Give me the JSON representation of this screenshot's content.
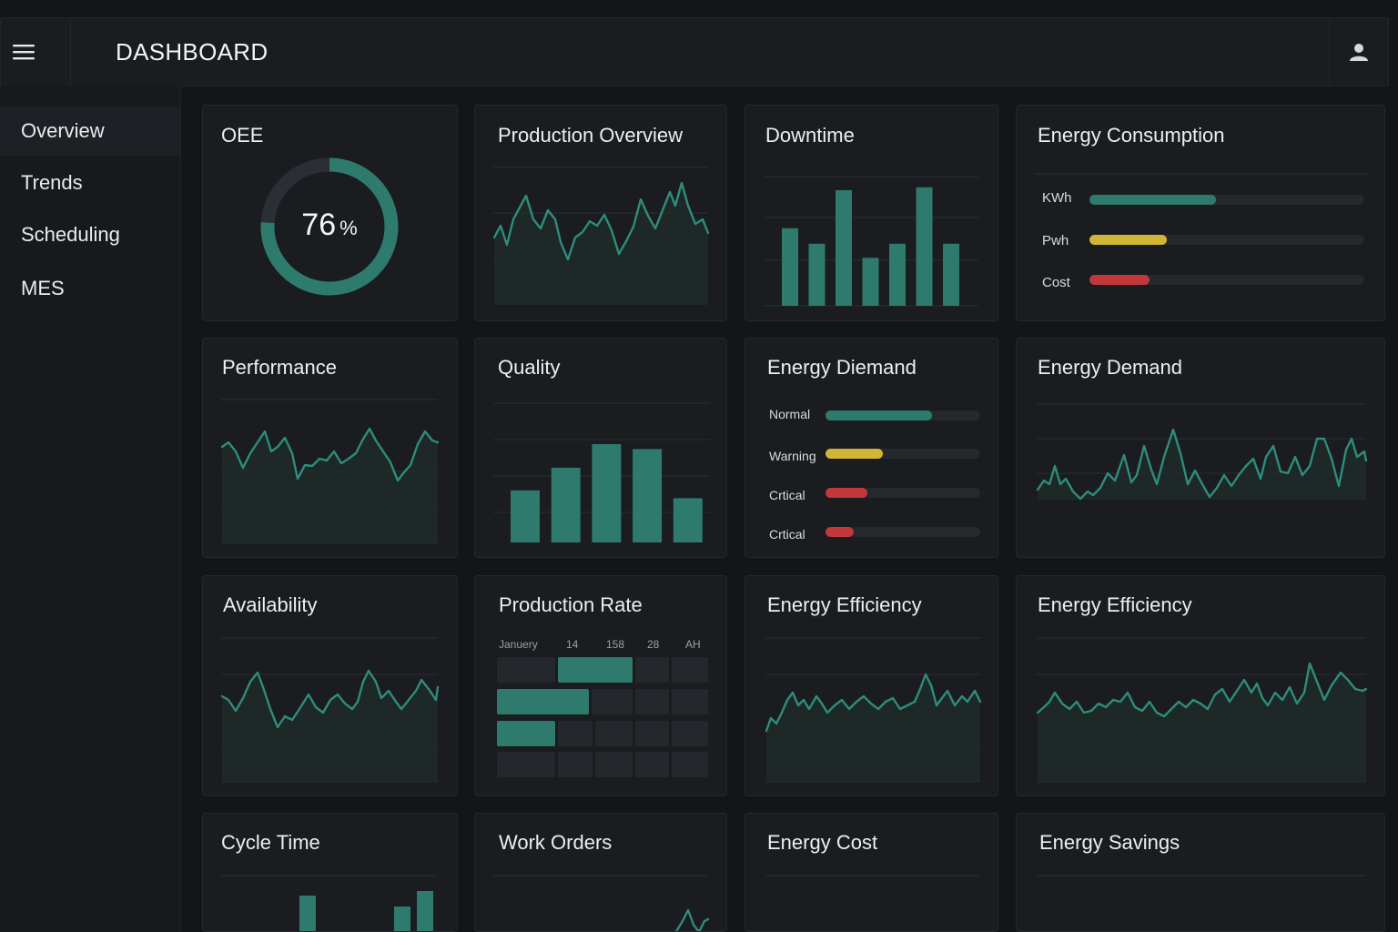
{
  "header": {
    "title": "DASHBOARD",
    "menu_icon": "hamburger-icon",
    "user_icon": "user-icon"
  },
  "sidebar": {
    "items": [
      {
        "label": "Overview",
        "active": true
      },
      {
        "label": "Trends",
        "active": false
      },
      {
        "label": "Scheduling",
        "active": false
      },
      {
        "label": "MES",
        "active": false
      }
    ]
  },
  "colors": {
    "accent": "#2e7a6d",
    "warning": "#d1b536",
    "critical": "#c2373a",
    "background": "#131518",
    "card": "#1a1c1f"
  },
  "cards": {
    "oee": {
      "title": "OEE",
      "value": "76",
      "unit": "%",
      "fraction": 0.76
    },
    "production_overview": {
      "title": "Production Overview"
    },
    "downtime": {
      "title": "Downtime",
      "bars": [
        0.55,
        0.44,
        0.82,
        0.34,
        0.44,
        0.84,
        0.44
      ]
    },
    "energy_consumption": {
      "title": "Energy Consumption",
      "rows": [
        {
          "label": "KWh",
          "level": 0.46,
          "color": "#2e7a6d"
        },
        {
          "label": "Pwh",
          "level": 0.28,
          "color": "#d1b536"
        },
        {
          "label": "Cost",
          "level": 0.22,
          "color": "#c2373a"
        }
      ]
    },
    "performance": {
      "title": "Performance"
    },
    "quality": {
      "title": "Quality",
      "bars": [
        0.53,
        0.76,
        1.0,
        0.95,
        0.45
      ]
    },
    "energy_diemand": {
      "title": "Energy Diemand",
      "rows": [
        {
          "label": "Normal",
          "level": 0.69,
          "color": "#2e7a6d"
        },
        {
          "label": "Warning",
          "level": 0.37,
          "color": "#d1b536"
        },
        {
          "label": "Crtical",
          "level": 0.27,
          "color": "#c2373a"
        },
        {
          "label": "Crtical",
          "level": 0.18,
          "color": "#c2373a"
        }
      ]
    },
    "energy_demand": {
      "title": "Energy Demand"
    },
    "availability": {
      "title": "Availability"
    },
    "production_rate": {
      "title": "Production Rate",
      "columns": [
        "Januery",
        "14",
        "158",
        "28",
        "AH"
      ]
    },
    "energy_efficiency_1": {
      "title": "Energy Efficiency"
    },
    "energy_efficiency_2": {
      "title": "Energy Efficiency"
    },
    "cycle_time": {
      "title": "Cycle  Time"
    },
    "work_orders": {
      "title": "Work Orders"
    },
    "energy_cost": {
      "title": "Energy Cost"
    },
    "energy_savings": {
      "title": "Energy Savings"
    }
  }
}
